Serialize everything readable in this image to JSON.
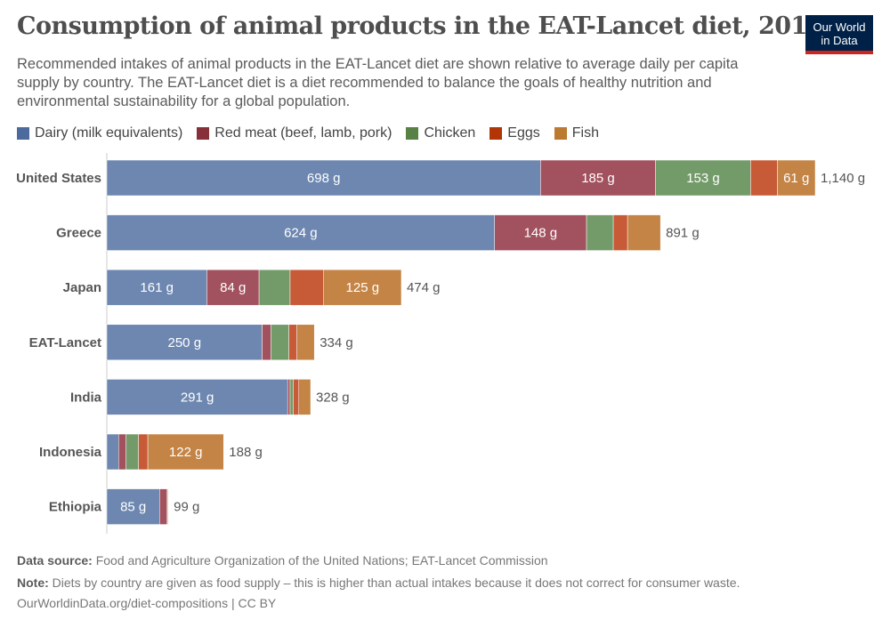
{
  "header": {
    "title": "Consumption of animal products in the EAT-Lancet diet, 2017",
    "subtitle": "Recommended intakes of animal products in the EAT-Lancet diet are shown relative to average daily per capita supply by country. The EAT-Lancet diet is a diet recommended to balance the goals of healthy nutrition and environmental sustainability for a global population.",
    "logo": [
      "Our World",
      "in Data"
    ]
  },
  "chart_data": {
    "type": "bar",
    "orientation": "horizontal",
    "stacked": true,
    "unit": "g",
    "categories": [
      "United States",
      "Greece",
      "Japan",
      "EAT-Lancet",
      "India",
      "Indonesia",
      "Ethiopia"
    ],
    "totals": [
      1140,
      891,
      474,
      334,
      328,
      188,
      99
    ],
    "series": [
      {
        "name": "Dairy (milk equivalents)",
        "color": "#6d87b1",
        "legend_color": "#4c6a9c",
        "values": [
          698,
          624,
          161,
          250,
          291,
          19,
          85
        ]
      },
      {
        "name": "Red meat (beef, lamb, pork)",
        "color": "#a2515e",
        "legend_color": "#883039",
        "values": [
          185,
          148,
          84,
          14,
          4,
          12,
          12
        ]
      },
      {
        "name": "Chicken",
        "color": "#739b69",
        "legend_color": "#578145",
        "values": [
          153,
          43,
          50,
          29,
          5,
          20,
          0
        ]
      },
      {
        "name": "Eggs",
        "color": "#c75a37",
        "legend_color": "#b13507",
        "values": [
          43,
          23,
          54,
          13,
          9,
          15,
          1
        ]
      },
      {
        "name": "Fish",
        "color": "#c48445",
        "legend_color": "#bc7a30",
        "values": [
          61,
          53,
          125,
          28,
          19,
          122,
          1
        ]
      }
    ],
    "legend_position": "top",
    "grid": false
  },
  "footer": {
    "source_label": "Data source:",
    "source": "Food and Agriculture Organization of the United Nations; EAT-Lancet Commission",
    "note_label": "Note:",
    "note": "Diets by country are given as food supply – this is higher than actual intakes because it does not correct for consumer waste.",
    "url": "OurWorldinData.org/diet-compositions | CC BY"
  }
}
